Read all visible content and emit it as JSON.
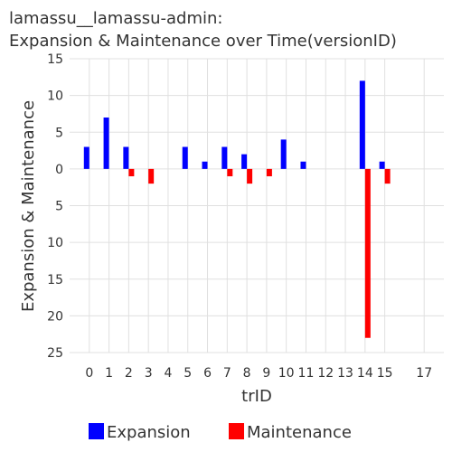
{
  "chart_data": {
    "type": "bar",
    "title_lines": [
      "lamassu__lamassu-admin:",
      "Expansion & Maintenance over Time(versionID)"
    ],
    "xlabel": "trID",
    "ylabel": "Expansion & Maintenance",
    "x_ticks": [
      0,
      1,
      2,
      3,
      4,
      5,
      6,
      7,
      8,
      9,
      10,
      11,
      12,
      13,
      14,
      15,
      17
    ],
    "xlim": [
      -1,
      18
    ],
    "y_ticks": [
      15,
      10,
      5,
      0,
      -5,
      -10,
      -15,
      -20,
      -25
    ],
    "y_tick_labels": [
      "15",
      "10",
      "5",
      "0",
      "5",
      "10",
      "15",
      "20",
      "25"
    ],
    "ylim": [
      -25,
      15
    ],
    "grid": true,
    "legend_position": "bottom",
    "series": [
      {
        "name": "Expansion",
        "color": "#0000ff",
        "x": [
          0,
          1,
          2,
          5,
          6,
          7,
          8,
          10,
          11,
          14,
          15
        ],
        "values": [
          3,
          7,
          3,
          3,
          1,
          3,
          2,
          4,
          1,
          12,
          1
        ]
      },
      {
        "name": "Maintenance",
        "color": "#ff0000",
        "x": [
          2,
          3,
          7,
          8,
          9,
          14,
          15
        ],
        "values": [
          -1,
          -2,
          -1,
          -2,
          -1,
          -23,
          -2
        ]
      }
    ]
  }
}
